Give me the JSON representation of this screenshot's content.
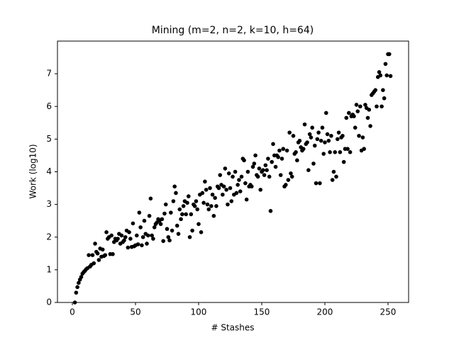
{
  "chart_data": {
    "type": "scatter",
    "title": "Mining (m=2, n=2, k=10, h=64)",
    "x_label": "# Stashes",
    "y_label": "Work (log10)",
    "color": "#000000",
    "xlim": [
      -11.8,
      266.3
    ],
    "ylim": [
      0,
      8.0
    ],
    "xticks": [
      0,
      50,
      100,
      150,
      200,
      250
    ],
    "yticks": [
      0,
      1,
      2,
      3,
      4,
      5,
      6,
      7
    ],
    "x": [
      2,
      3,
      4,
      5,
      6,
      7,
      8,
      9,
      10,
      11,
      12,
      13,
      14,
      15,
      16,
      17,
      18,
      19,
      20,
      21,
      22,
      23,
      24,
      25,
      26,
      27,
      28,
      29,
      30,
      31,
      32,
      33,
      34,
      35,
      36,
      37,
      38,
      39,
      40,
      41,
      42,
      43,
      44,
      45,
      46,
      47,
      48,
      49,
      50,
      51,
      52,
      53,
      54,
      55,
      56,
      57,
      58,
      59,
      60,
      61,
      62,
      63,
      64,
      65,
      66,
      67,
      68,
      69,
      70,
      71,
      72,
      73,
      74,
      75,
      76,
      77,
      78,
      79,
      80,
      81,
      82,
      83,
      84,
      85,
      86,
      87,
      88,
      89,
      90,
      91,
      92,
      93,
      94,
      95,
      96,
      97,
      98,
      99,
      100,
      101,
      102,
      103,
      104,
      105,
      106,
      107,
      108,
      109,
      110,
      111,
      112,
      113,
      114,
      115,
      116,
      117,
      118,
      119,
      120,
      121,
      122,
      123,
      124,
      125,
      126,
      127,
      128,
      129,
      130,
      131,
      132,
      133,
      134,
      135,
      136,
      137,
      138,
      139,
      140,
      141,
      142,
      143,
      144,
      145,
      146,
      147,
      148,
      149,
      150,
      151,
      152,
      153,
      154,
      155,
      156,
      157,
      158,
      159,
      160,
      161,
      162,
      163,
      164,
      165,
      166,
      167,
      168,
      169,
      170,
      171,
      172,
      173,
      174,
      175,
      176,
      177,
      178,
      179,
      180,
      181,
      182,
      183,
      184,
      185,
      186,
      187,
      188,
      189,
      190,
      191,
      192,
      193,
      194,
      195,
      196,
      197,
      198,
      199,
      200,
      201,
      202,
      203,
      204,
      205,
      206,
      207,
      208,
      209,
      210,
      211,
      212,
      213,
      214,
      215,
      216,
      217,
      218,
      219,
      220,
      221,
      222,
      223,
      224,
      225,
      226,
      227,
      228,
      229,
      230,
      231,
      232,
      233,
      234,
      235,
      236,
      237,
      238,
      239,
      240,
      241,
      242,
      243,
      244,
      245,
      246,
      247,
      248,
      249,
      250,
      251,
      252
    ],
    "values": [
      0,
      0.3,
      0.47,
      0.6,
      0.7,
      0.78,
      0.88,
      0.93,
      0.97,
      1.02,
      1.05,
      1.45,
      1.1,
      1.15,
      1.45,
      1.2,
      1.8,
      1.55,
      1.5,
      1.3,
      1.65,
      1.4,
      1.62,
      1.42,
      1.45,
      2.15,
      1.95,
      2.0,
      1.48,
      2.05,
      1.48,
      1.85,
      1.95,
      1.9,
      1.95,
      2.1,
      1.8,
      2.05,
      1.85,
      1.9,
      2.0,
      2.2,
      1.68,
      2.15,
      1.95,
      1.7,
      2.42,
      1.72,
      1.75,
      2.05,
      1.78,
      2.75,
      2.3,
      1.75,
      2.0,
      2.5,
      2.1,
      1.8,
      2.05,
      2.65,
      3.18,
      2.05,
      1.95,
      2.3,
      2.4,
      2.45,
      2.55,
      2.5,
      2.4,
      2.55,
      1.88,
      2.72,
      3.0,
      2.25,
      2.0,
      1.9,
      2.75,
      2.2,
      3.1,
      3.55,
      3.35,
      2.35,
      2.1,
      2.85,
      2.55,
      2.7,
      2.95,
      3.1,
      2.7,
      3.05,
      3.25,
      2.0,
      2.7,
      2.2,
      3.0,
      2.95,
      3.1,
      2.85,
      2.4,
      3.3,
      2.15,
      3.35,
      3.05,
      3.7,
      3.45,
      3.0,
      2.85,
      3.5,
      2.95,
      3.3,
      2.65,
      3.2,
      2.95,
      3.55,
      3.5,
      3.9,
      3.6,
      3.3,
      3.55,
      4.1,
      3.45,
      3.0,
      3.95,
      3.5,
      3.1,
      3.85,
      3.3,
      4.0,
      3.35,
      3.6,
      3.75,
      3.4,
      3.85,
      4.4,
      4.35,
      3.65,
      3.15,
      4.0,
      3.55,
      3.6,
      3.55,
      4.15,
      4.25,
      4.5,
      3.9,
      3.85,
      4.1,
      3.45,
      4.0,
      4.05,
      3.9,
      4.2,
      4.05,
      4.4,
      3.85,
      2.8,
      4.3,
      4.85,
      4.5,
      4.15,
      4.5,
      4.45,
      4.65,
      3.9,
      4.4,
      4.7,
      3.55,
      3.6,
      4.65,
      3.75,
      5.2,
      3.95,
      3.85,
      5.1,
      4.55,
      4.6,
      4.35,
      4.9,
      4.95,
      4.75,
      4.65,
      4.7,
      5.45,
      4.85,
      4.9,
      4.05,
      5.15,
      5.05,
      5.35,
      4.25,
      4.8,
      3.65,
      5.0,
      5.2,
      3.65,
      4.95,
      5.35,
      4.55,
      4.9,
      5.8,
      5.15,
      4.95,
      4.6,
      5.1,
      3.75,
      4.0,
      4.6,
      3.85,
      5.0,
      5.2,
      4.6,
      5.05,
      5.1,
      4.3,
      4.7,
      5.65,
      4.7,
      5.8,
      4.6,
      5.7,
      5.75,
      5.7,
      5.35,
      6.05,
      5.85,
      5.1,
      6.0,
      4.65,
      5.05,
      4.7,
      6.05,
      5.95,
      5.65,
      5.9,
      5.4,
      6.35,
      6.4,
      6.45,
      6.5,
      6.0,
      6.9,
      7.05,
      6.95,
      6.0,
      6.5,
      6.25,
      7.3,
      6.95,
      7.6,
      7.6,
      6.93
    ]
  }
}
